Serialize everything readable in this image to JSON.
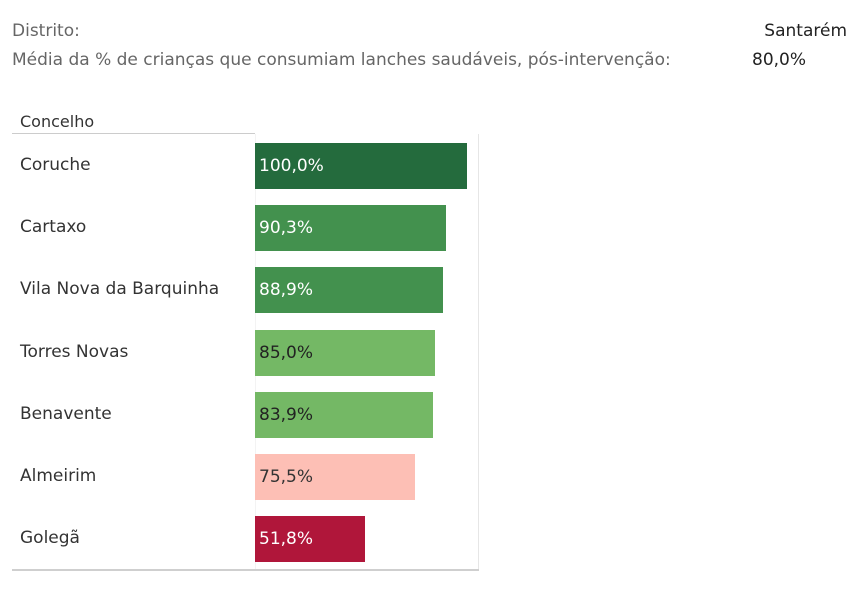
{
  "header": {
    "district_label": "Distrito:",
    "district_value": "Santarém",
    "metric_label": "Média da % de crianças que consumiam lanches saudáveis, pós-intervenção:",
    "metric_value": "80,0%"
  },
  "chart_data": {
    "type": "bar",
    "orientation": "horizontal",
    "column_header": "Concelho",
    "categories": [
      "Coruche",
      "Cartaxo",
      "Vila Nova da Barquinha",
      "Torres Novas",
      "Benavente",
      "Almeirim",
      "Golegã"
    ],
    "values": [
      100.0,
      90.3,
      88.9,
      85.0,
      83.9,
      75.5,
      51.8
    ],
    "labels": [
      "100,0%",
      "90,3%",
      "88,9%",
      "85,0%",
      "83,9%",
      "75,5%",
      "51,8%"
    ],
    "colors": [
      "#246b3d",
      "#43914e",
      "#43914e",
      "#74b865",
      "#74b865",
      "#fdbfb5",
      "#b0163a"
    ],
    "label_colors": [
      "#ffffff",
      "#ffffff",
      "#ffffff",
      "#222222",
      "#222222",
      "#333333",
      "#ffffff"
    ],
    "xlim": [
      0,
      100
    ]
  }
}
